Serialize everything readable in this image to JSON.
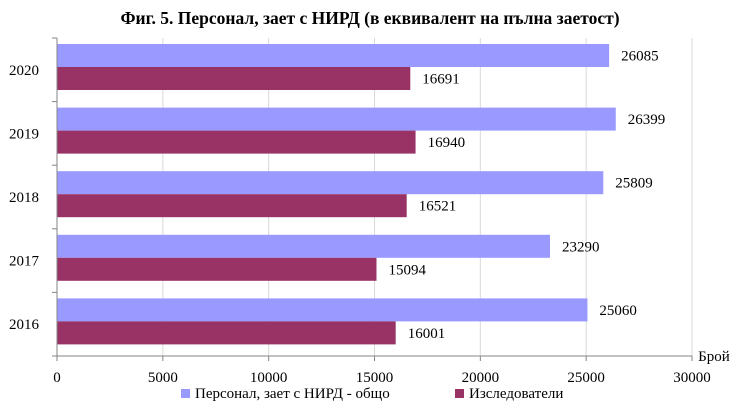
{
  "chart_data": {
    "type": "bar",
    "orientation": "horizontal",
    "title": "Фиг. 5. Персонал, заeт с НИРД (в еквивалент на пълна заетост)",
    "xlabel": "Брой",
    "ylabel": "",
    "xlim": [
      0,
      30000
    ],
    "x_ticks": [
      "0",
      "5000",
      "10000",
      "15000",
      "20000",
      "25000",
      "30000"
    ],
    "categories": [
      "2020",
      "2019",
      "2018",
      "2017",
      "2016"
    ],
    "series": [
      {
        "name": "Персонал, заeт с НИРД - общо",
        "color": "#9999ff",
        "values": [
          26085,
          26399,
          25809,
          23290,
          25060
        ]
      },
      {
        "name": "Изследователи",
        "color": "#993366",
        "values": [
          16691,
          16940,
          16521,
          15094,
          16001
        ]
      }
    ],
    "value_labels": [
      [
        "26085",
        "26399",
        "25809",
        "23290",
        "25060"
      ],
      [
        "16691",
        "16940",
        "16521",
        "15094",
        "16001"
      ]
    ],
    "grid": true,
    "legend_position": "bottom"
  }
}
